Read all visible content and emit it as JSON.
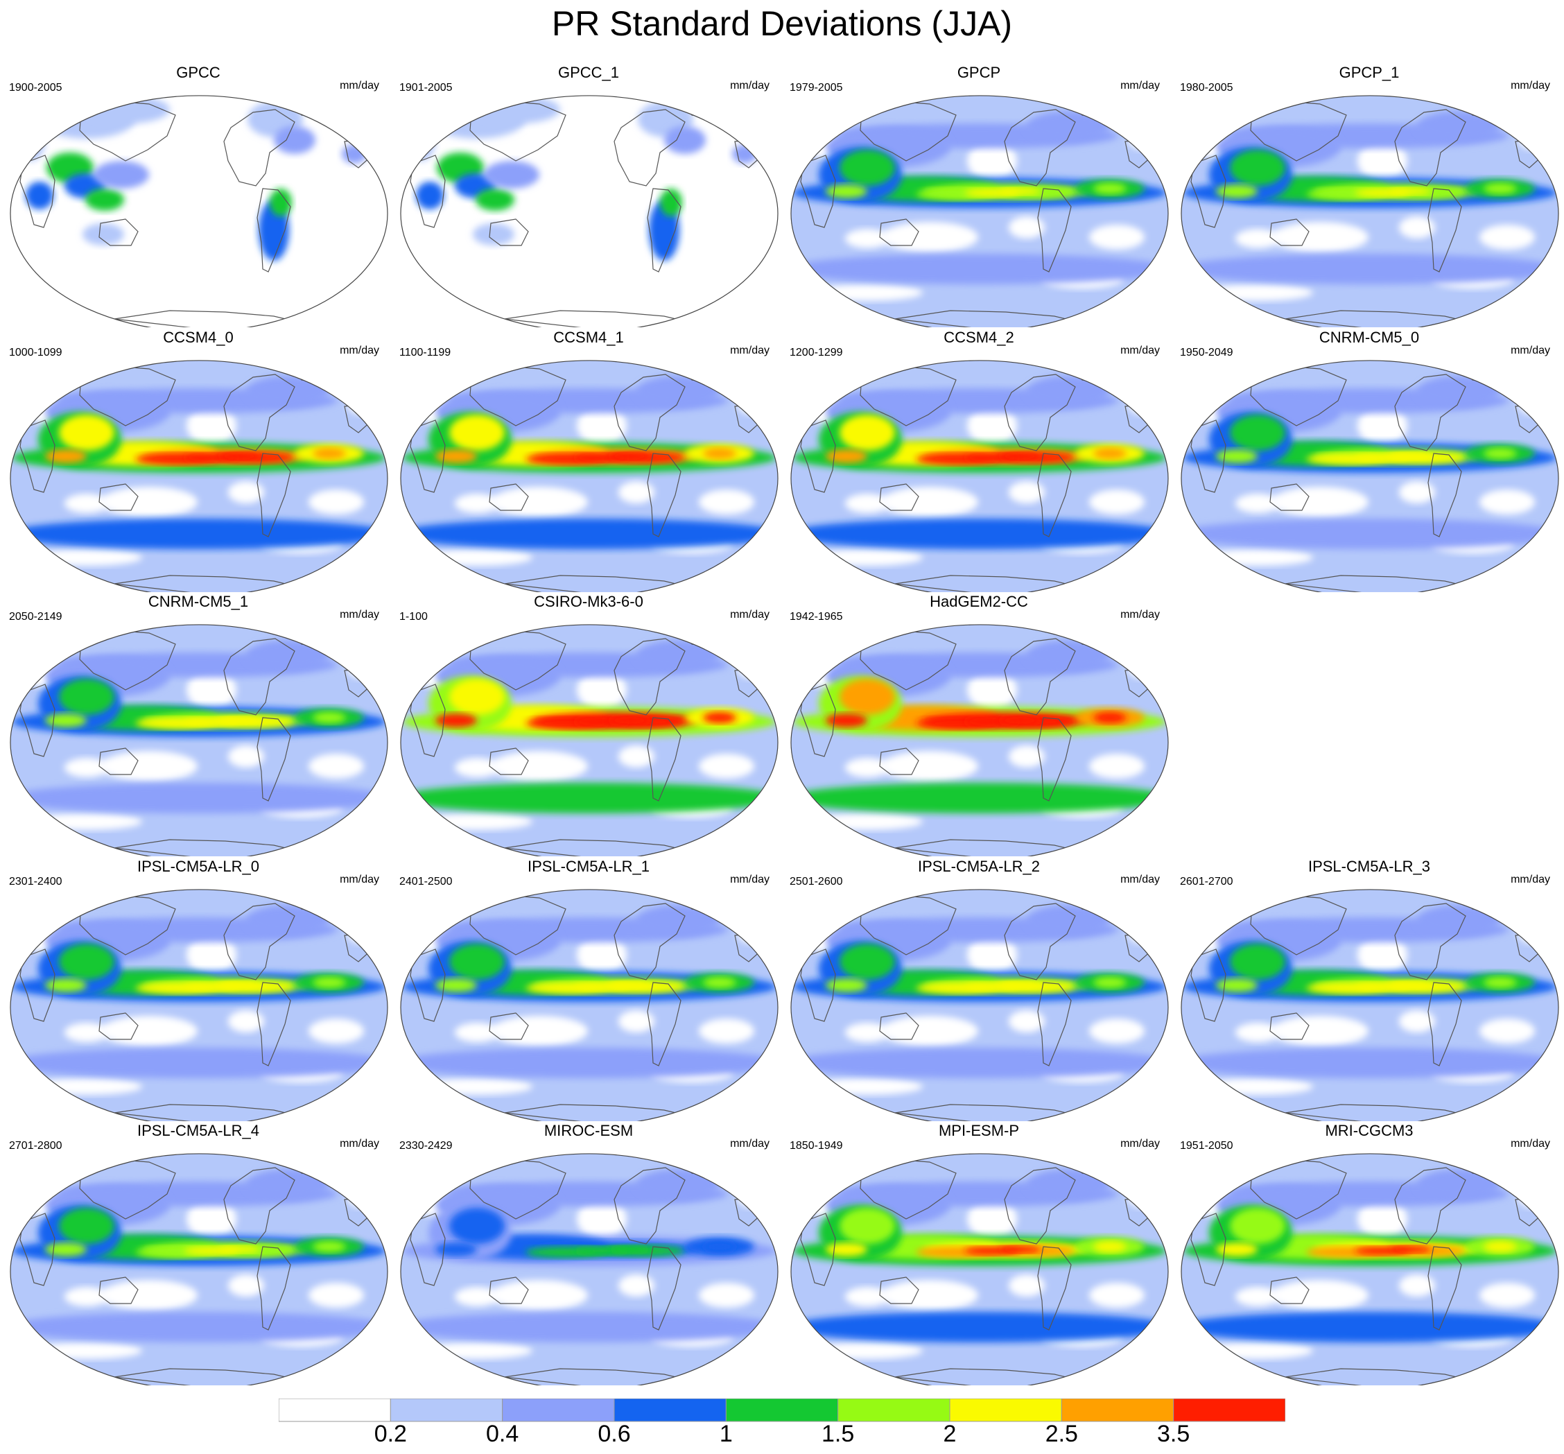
{
  "title": "PR Standard Deviations (JJA)",
  "units": "mm/day",
  "colorbar": {
    "labels": [
      "0.2",
      "0.4",
      "0.6",
      "1",
      "1.5",
      "2",
      "2.5",
      "3.5"
    ],
    "colors": [
      "#ffffff",
      "#b4c8fa",
      "#8ca0fa",
      "#1464f0",
      "#14c832",
      "#96fa14",
      "#fafa00",
      "#ffa000",
      "#ff1e00"
    ]
  },
  "panels": [
    {
      "title": "GPCC",
      "period": "1900-2005",
      "row": 0,
      "col": 0,
      "land_only": true
    },
    {
      "title": "GPCC_1",
      "period": "1901-2005",
      "row": 0,
      "col": 1,
      "land_only": true
    },
    {
      "title": "GPCP",
      "period": "1979-2005",
      "row": 0,
      "col": 2,
      "strength": 0.75
    },
    {
      "title": "GPCP_1",
      "period": "1980-2005",
      "row": 0,
      "col": 3,
      "strength": 0.75
    },
    {
      "title": "CCSM4_0",
      "period": "1000-1099",
      "row": 1,
      "col": 0,
      "strength": 1.1
    },
    {
      "title": "CCSM4_1",
      "period": "1100-1199",
      "row": 1,
      "col": 1,
      "strength": 1.1
    },
    {
      "title": "CCSM4_2",
      "period": "1200-1299",
      "row": 1,
      "col": 2,
      "strength": 1.1
    },
    {
      "title": "CNRM-CM5_0",
      "period": "1950-2049",
      "row": 1,
      "col": 3,
      "strength": 0.8
    },
    {
      "title": "CNRM-CM5_1",
      "period": "2050-2149",
      "row": 2,
      "col": 0,
      "strength": 0.8
    },
    {
      "title": "CSIRO-Mk3-6-0",
      "period": "1-100",
      "row": 2,
      "col": 1,
      "strength": 1.25
    },
    {
      "title": "HadGEM2-CC",
      "period": "1942-1965",
      "row": 2,
      "col": 2,
      "strength": 1.3
    },
    {
      "title": "IPSL-CM5A-LR_0",
      "period": "2301-2400",
      "row": 3,
      "col": 0,
      "strength": 0.8
    },
    {
      "title": "IPSL-CM5A-LR_1",
      "period": "2401-2500",
      "row": 3,
      "col": 1,
      "strength": 0.8
    },
    {
      "title": "IPSL-CM5A-LR_2",
      "period": "2501-2600",
      "row": 3,
      "col": 2,
      "strength": 0.8
    },
    {
      "title": "IPSL-CM5A-LR_3",
      "period": "2601-2700",
      "row": 3,
      "col": 3,
      "strength": 0.8
    },
    {
      "title": "IPSL-CM5A-LR_4",
      "period": "2701-2800",
      "row": 4,
      "col": 0,
      "strength": 0.75
    },
    {
      "title": "MIROC-ESM",
      "period": "2330-2429",
      "row": 4,
      "col": 1,
      "strength": 0.55
    },
    {
      "title": "MPI-ESM-P",
      "period": "1850-1949",
      "row": 4,
      "col": 2,
      "strength": 1.0
    },
    {
      "title": "MRI-CGCM3",
      "period": "1951-2050",
      "row": 4,
      "col": 3,
      "strength": 1.0
    }
  ]
}
